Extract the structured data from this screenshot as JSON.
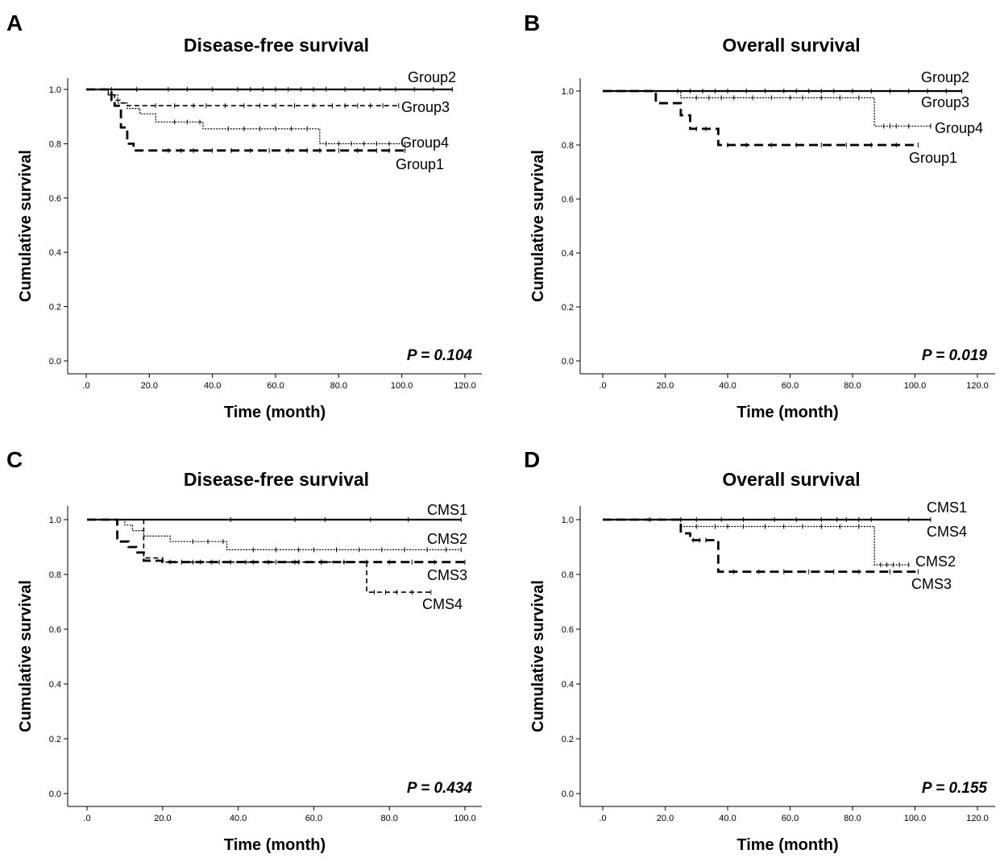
{
  "chart_data": [
    {
      "letter": "A",
      "type": "line",
      "title": "Disease-free survival",
      "xlabel": "Time (month)",
      "ylabel": "Cumulative survival",
      "xlim": [
        0,
        120
      ],
      "ylim": [
        0,
        1
      ],
      "xticks": [
        ".0",
        "20.0",
        "40.0",
        "60.0",
        "80.0",
        "100.0",
        "120.0"
      ],
      "yticks": [
        "0.0",
        "0.2",
        "0.4",
        "0.6",
        "0.8",
        "1.0"
      ],
      "pvalue": "P = 0.104",
      "grid": false,
      "series": [
        {
          "name": "Group2",
          "style": "solid",
          "x": [
            0,
            116
          ],
          "y": [
            1.0,
            1.0
          ],
          "censor_x": [
            8,
            16,
            26,
            32,
            40,
            48,
            52,
            56,
            60,
            64,
            68,
            72,
            76,
            82,
            88,
            93,
            98,
            104,
            110,
            116
          ]
        },
        {
          "name": "Group3",
          "style": "dash",
          "x": [
            0,
            7,
            9,
            11,
            13,
            99
          ],
          "y": [
            1.0,
            0.98,
            0.96,
            0.95,
            0.94,
            0.94
          ],
          "censor_x": [
            22,
            28,
            34,
            38,
            44,
            50,
            55,
            60,
            66,
            72,
            78,
            82,
            86,
            90,
            94,
            99
          ]
        },
        {
          "name": "Group4",
          "style": "dot",
          "x": [
            0,
            7,
            10,
            13,
            17,
            22,
            37,
            74,
            101
          ],
          "y": [
            1.0,
            0.98,
            0.95,
            0.93,
            0.91,
            0.88,
            0.855,
            0.8,
            0.8
          ],
          "censor_x": [
            28,
            32,
            36,
            45,
            50,
            55,
            60,
            65,
            70,
            76,
            80,
            84,
            88,
            92,
            96,
            101
          ]
        },
        {
          "name": "Group1",
          "style": "longdash",
          "x": [
            0,
            8,
            9,
            11,
            13,
            15,
            101
          ],
          "y": [
            1.0,
            0.96,
            0.94,
            0.86,
            0.8,
            0.775,
            0.775
          ],
          "censor_x": [
            26,
            30,
            34,
            40,
            46,
            52,
            58,
            64,
            70,
            74,
            80,
            86,
            92,
            96,
            101
          ]
        }
      ],
      "labels": [
        {
          "text": "Group2",
          "series": "Group2"
        },
        {
          "text": "Group3",
          "series": "Group3"
        },
        {
          "text": "Group4",
          "series": "Group4"
        },
        {
          "text": "Group1",
          "series": "Group1"
        }
      ]
    },
    {
      "letter": "B",
      "type": "line",
      "title": "Overall survival",
      "xlabel": "Time (month)",
      "ylabel": "Cumulative survival",
      "xlim": [
        0,
        120
      ],
      "ylim": [
        0,
        1
      ],
      "xticks": [
        ".0",
        "20.0",
        "40.0",
        "60.0",
        "80.0",
        "100.0",
        "120.0"
      ],
      "yticks": [
        "0.0",
        "0.2",
        "0.4",
        "0.6",
        "0.8",
        "1.0"
      ],
      "pvalue": "P = 0.019",
      "grid": false,
      "series": [
        {
          "name": "Group2",
          "style": "solid",
          "x": [
            0,
            115
          ],
          "y": [
            1.0,
            1.0
          ],
          "censor_x": [
            24,
            28,
            32,
            36,
            40,
            46,
            52,
            58,
            62,
            66,
            70,
            74,
            80,
            86,
            92,
            98,
            104,
            110,
            115
          ]
        },
        {
          "name": "Group3",
          "style": "dot",
          "x": [
            0,
            25,
            87,
            105
          ],
          "y": [
            1.0,
            0.975,
            0.87,
            0.87
          ],
          "censor_x": [
            30,
            34,
            38,
            42,
            48,
            54,
            60,
            64,
            70,
            76,
            82,
            90,
            92,
            94,
            98,
            105
          ]
        },
        {
          "name": "Group1",
          "style": "longdash",
          "x": [
            0,
            17,
            25,
            28,
            37,
            101
          ],
          "y": [
            1.0,
            0.955,
            0.91,
            0.86,
            0.8,
            0.8
          ],
          "censor_x": [
            30,
            33,
            40,
            46,
            54,
            62,
            70,
            78,
            86,
            94,
            101
          ]
        }
      ],
      "labels": [
        {
          "text": "Group2",
          "series": "Group2"
        },
        {
          "text": "Group3",
          "series": "Group3"
        },
        {
          "text": "Group4",
          "series": "Group3"
        },
        {
          "text": "Group1",
          "series": "Group1"
        }
      ]
    },
    {
      "letter": "C",
      "type": "line",
      "title": "Disease-free survival",
      "xlabel": "Time (month)",
      "ylabel": "Cumulative survival",
      "xlim": [
        0,
        100
      ],
      "ylim": [
        0,
        1
      ],
      "xticks": [
        ".0",
        "20.0",
        "40.0",
        "60.0",
        "80.0",
        "100.0"
      ],
      "yticks": [
        "0.0",
        "0.2",
        "0.4",
        "0.6",
        "0.8",
        "1.0"
      ],
      "pvalue": "P = 0.434",
      "grid": false,
      "series": [
        {
          "name": "CMS1",
          "style": "solid",
          "x": [
            0,
            99
          ],
          "y": [
            1.0,
            1.0
          ],
          "censor_x": [
            38,
            55,
            63,
            75,
            85,
            99
          ]
        },
        {
          "name": "CMS2",
          "style": "dot",
          "x": [
            0,
            10,
            12,
            15,
            22,
            37,
            99
          ],
          "y": [
            1.0,
            0.98,
            0.96,
            0.94,
            0.92,
            0.89,
            0.89
          ],
          "censor_x": [
            28,
            32,
            36,
            44,
            50,
            56,
            60,
            66,
            72,
            78,
            84,
            90,
            95,
            99
          ]
        },
        {
          "name": "CMS3",
          "style": "longdash",
          "x": [
            0,
            8,
            11,
            13,
            15,
            20,
            100
          ],
          "y": [
            1.0,
            0.92,
            0.9,
            0.88,
            0.85,
            0.845,
            0.845
          ],
          "censor_x": [
            22,
            28,
            33,
            38,
            44,
            50,
            56,
            62,
            68,
            74,
            80,
            86,
            92,
            100
          ]
        },
        {
          "name": "CMS4",
          "style": "dash",
          "x": [
            0,
            15,
            20,
            74,
            91
          ],
          "y": [
            1.0,
            0.86,
            0.845,
            0.735,
            0.735
          ],
          "censor_x": [
            25,
            30,
            35,
            42,
            48,
            55,
            62,
            68,
            76,
            79,
            82,
            86,
            91
          ]
        }
      ],
      "labels": [
        {
          "text": "CMS1",
          "series": "CMS1"
        },
        {
          "text": "CMS2",
          "series": "CMS2"
        },
        {
          "text": "CMS3",
          "series": "CMS3"
        },
        {
          "text": "CMS4",
          "series": "CMS4"
        }
      ]
    },
    {
      "letter": "D",
      "type": "line",
      "title": "Overall survival",
      "xlabel": "Time (month)",
      "ylabel": "Cumulative survival",
      "xlim": [
        0,
        120
      ],
      "ylim": [
        0,
        1
      ],
      "xticks": [
        ".0",
        "20.0",
        "40.0",
        "60.0",
        "80.0",
        "100.0",
        "120.0"
      ],
      "yticks": [
        "0.0",
        "0.2",
        "0.4",
        "0.6",
        "0.8",
        "1.0"
      ],
      "pvalue": "P = 0.155",
      "grid": false,
      "series": [
        {
          "name": "CMS1",
          "style": "solid",
          "x": [
            0,
            105
          ],
          "y": [
            1.0,
            1.0
          ],
          "censor_x": [
            15,
            25,
            30,
            38,
            45,
            55,
            62,
            70,
            75,
            78,
            82,
            86,
            98,
            105
          ]
        },
        {
          "name": "CMS4",
          "style": "dot",
          "x": [
            0,
            25,
            87,
            98
          ],
          "y": [
            1.0,
            0.975,
            0.835,
            0.835
          ],
          "censor_x": [
            30,
            36,
            40,
            45,
            52,
            58,
            64,
            70,
            76,
            82,
            89,
            91,
            93,
            95,
            98
          ]
        },
        {
          "name": "CMS3",
          "style": "longdash",
          "x": [
            0,
            25,
            28,
            37,
            101
          ],
          "y": [
            1.0,
            0.95,
            0.925,
            0.81,
            0.81
          ],
          "censor_x": [
            29,
            31,
            33,
            42,
            50,
            58,
            66,
            74,
            82,
            92,
            101
          ]
        }
      ],
      "labels": [
        {
          "text": "CMS1",
          "series": "CMS1"
        },
        {
          "text": "CMS4",
          "series": "CMS4"
        },
        {
          "text": "CMS2",
          "series": "CMS4"
        },
        {
          "text": "CMS3",
          "series": "CMS3"
        }
      ]
    }
  ]
}
